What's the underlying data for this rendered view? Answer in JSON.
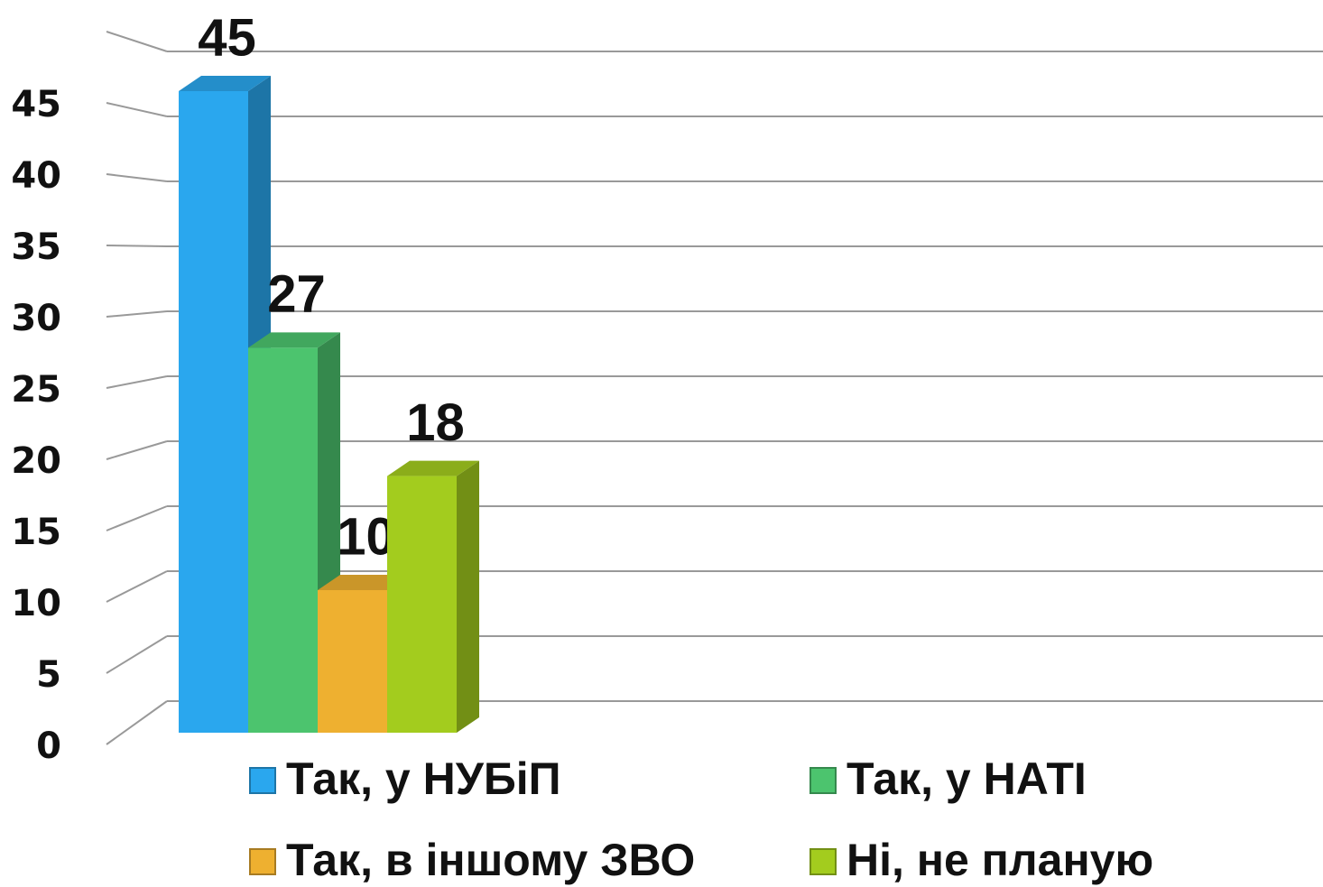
{
  "chart_data": {
    "type": "bar3d",
    "categories": [
      null
    ],
    "series": [
      {
        "name": "Так, у НУБіП",
        "color": "#2aa7ee",
        "values": [
          45
        ]
      },
      {
        "name": "Так, у НАТІ",
        "color": "#4cc46e",
        "values": [
          27
        ]
      },
      {
        "name": "Так, в іншому ЗВО",
        "color": "#eeb030",
        "values": [
          10
        ]
      },
      {
        "name": "Ні, не планую",
        "color": "#a3cc1e",
        "values": [
          18
        ]
      }
    ],
    "ylim": [
      0,
      50
    ],
    "yticks": [
      0,
      5,
      10,
      15,
      20,
      25,
      30,
      35,
      40,
      45
    ],
    "grid": true
  }
}
